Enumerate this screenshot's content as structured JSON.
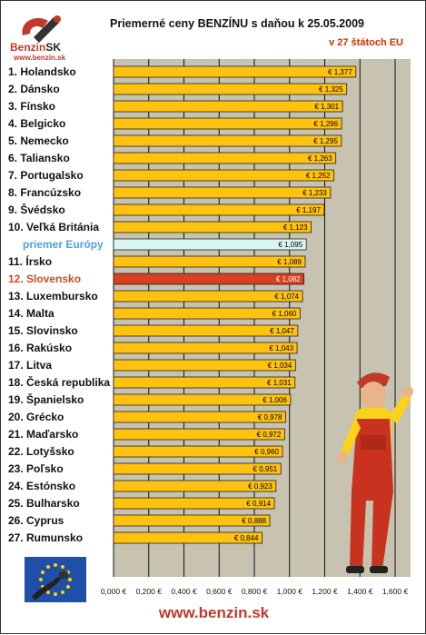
{
  "logo": {
    "brand": "Benzin",
    "brand_suffix": "SK",
    "url": "www.benzin.sk"
  },
  "footer": {
    "url": "www.benzin.sk"
  },
  "colors": {
    "bar": "#ffc20e",
    "average_bar": "#d8f5f0",
    "slovakia_bar": "#d8401e",
    "plot_background": "#c8c2b0",
    "average_label": "#4aa3df",
    "slovakia_label": "#d44a1f"
  },
  "chart_data": {
    "type": "bar",
    "orientation": "horizontal",
    "title": "Priemerné ceny BENZÍNU s daňou k 25.05.2009",
    "subtitle": "v 27 štátoch EU",
    "xlim": [
      0,
      1.6
    ],
    "x_ticks": [
      "0,000 €",
      "0,200 €",
      "0,400 €",
      "0,600 €",
      "0,800 €",
      "1,000 €",
      "1,200 €",
      "1,400 €",
      "1,600 €"
    ],
    "grid": true,
    "categories": [
      "1. Holandsko",
      "2. Dánsko",
      "3. Fínsko",
      "4. Belgicko",
      "5. Nemecko",
      "6. Taliansko",
      "7. Portugalsko",
      "8. Francúzsko",
      "9. Švédsko",
      "10. Veľká Británia",
      "priemer Európy",
      "11. Írsko",
      "12. Slovensko",
      "13. Luxembursko",
      "14. Malta",
      "15. Slovinsko",
      "16. Rakúsko",
      "17. Litva",
      "18. Česká republika",
      "19. Španielsko",
      "20. Grécko",
      "21. Maďarsko",
      "22. Lotyšsko",
      "23. Poľsko",
      "24. Estónsko",
      "25. Bulharsko",
      "26. Cyprus",
      "27. Rumunsko"
    ],
    "values": [
      1.377,
      1.325,
      1.301,
      1.296,
      1.295,
      1.263,
      1.252,
      1.233,
      1.197,
      1.123,
      1.095,
      1.089,
      1.082,
      1.074,
      1.06,
      1.047,
      1.043,
      1.034,
      1.031,
      1.006,
      0.978,
      0.972,
      0.96,
      0.951,
      0.923,
      0.914,
      0.888,
      0.844
    ],
    "value_labels": [
      "€ 1,377",
      "€ 1,325",
      "€ 1,301",
      "€ 1,296",
      "€ 1,295",
      "€ 1,263",
      "€ 1,252",
      "€ 1,233",
      "€ 1,197",
      "€ 1,123",
      "€ 1,095",
      "€ 1,089",
      "€ 1,082",
      "€ 1,074",
      "€ 1,060",
      "€ 1,047",
      "€ 1,043",
      "€ 1,034",
      "€ 1,031",
      "€ 1,006",
      "€ 0,978",
      "€ 0,972",
      "€ 0,960",
      "€ 0,951",
      "€ 0,923",
      "€ 0,914",
      "€ 0,888",
      "€ 0,844"
    ],
    "highlight": {
      "average_index": 10,
      "slovakia_index": 12
    }
  }
}
